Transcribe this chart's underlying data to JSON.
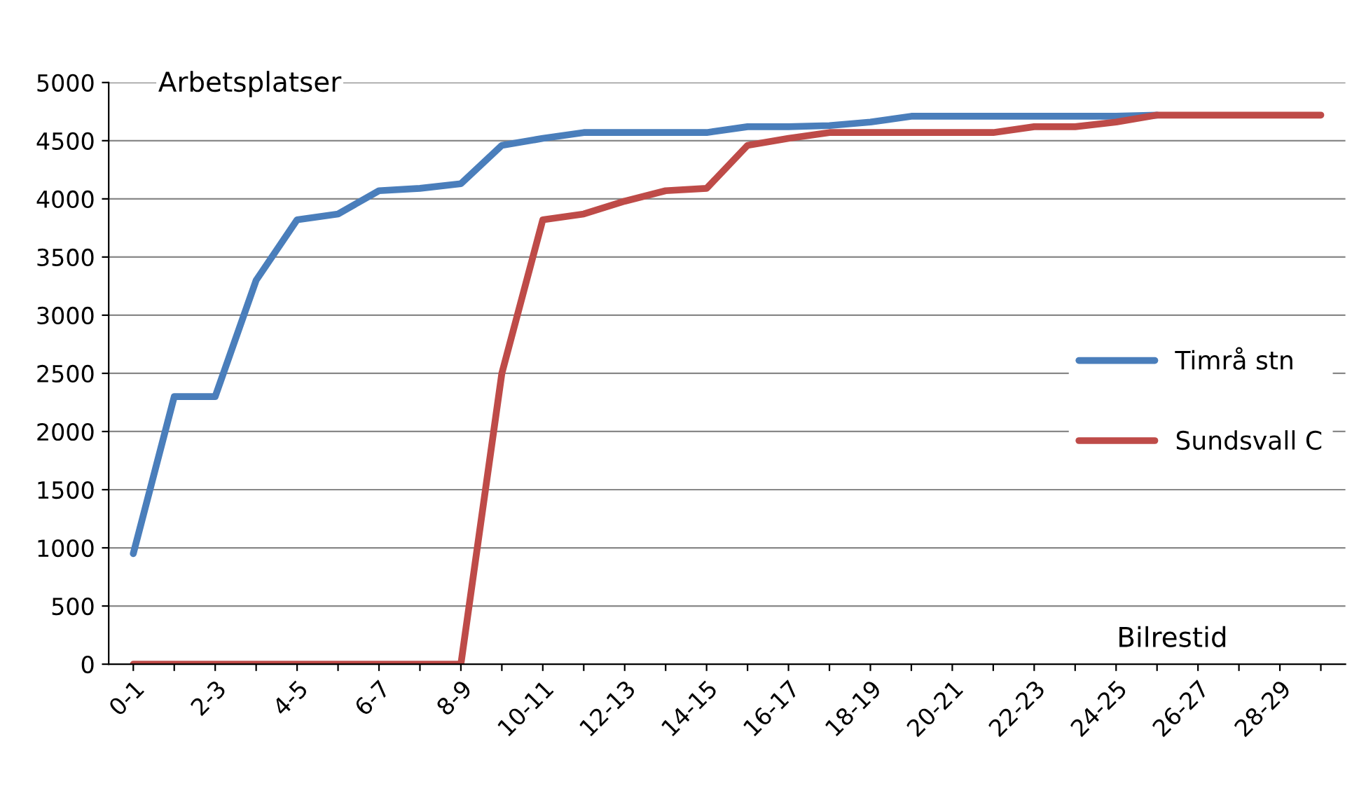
{
  "chart_data": {
    "type": "line",
    "ylabel": "Arbetsplatser",
    "xlabel": "Bilrestid",
    "categories": [
      "0-1",
      null,
      "2-3",
      null,
      "4-5",
      null,
      "6-7",
      null,
      "8-9",
      null,
      "10-11",
      null,
      "12-13",
      null,
      "14-15",
      null,
      "16-17",
      null,
      "18-19",
      null,
      "20-21",
      null,
      "22-23",
      null,
      "24-25",
      null,
      "26-27",
      null,
      "28-29",
      null
    ],
    "series": [
      {
        "name": "Timrå stn",
        "color": "#4a7ebb",
        "values": [
          950,
          2300,
          2300,
          3300,
          3820,
          3870,
          4070,
          4090,
          4130,
          4460,
          4520,
          4570,
          4570,
          4570,
          4570,
          4620,
          4620,
          4630,
          4660,
          4710,
          4710,
          4710,
          4710,
          4710,
          4710,
          4720,
          null,
          null,
          null,
          null
        ]
      },
      {
        "name": "Sundsvall C",
        "color": "#be4b48",
        "values": [
          0,
          0,
          0,
          0,
          0,
          0,
          0,
          0,
          0,
          2500,
          3820,
          3870,
          3980,
          4070,
          4090,
          4460,
          4520,
          4570,
          4570,
          4570,
          4570,
          4570,
          4620,
          4620,
          4660,
          4720,
          4720,
          4720,
          4720,
          4720
        ]
      }
    ],
    "ylim": [
      0,
      5000
    ],
    "yticks": [
      0,
      500,
      1000,
      1500,
      2000,
      2500,
      3000,
      3500,
      4000,
      4500,
      5000
    ],
    "grid": "y",
    "legend": "right",
    "marker": "none",
    "line_style": "solid"
  }
}
